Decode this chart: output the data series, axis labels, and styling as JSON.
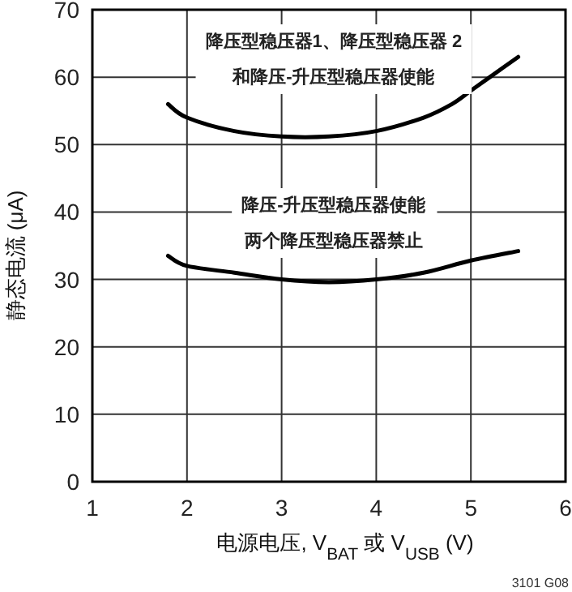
{
  "chart_data": {
    "type": "line",
    "xlabel": "电源电压, V$_{BAT}$ 或 V$_{USB}$ (V)",
    "ylabel": "静态电流 (μA)",
    "xlim": [
      1,
      6
    ],
    "ylim": [
      0,
      70
    ],
    "xticks": [
      1,
      2,
      3,
      4,
      5,
      6
    ],
    "yticks": [
      0,
      10,
      20,
      30,
      40,
      50,
      60,
      70
    ],
    "grid": true,
    "legend": false,
    "marker": "none",
    "line_style": "solid",
    "series": [
      {
        "name": "降压型稳压器1、降压型稳压器 2和降压-升压型稳压器使能",
        "color": "#000000",
        "x": [
          1.8,
          2,
          2.5,
          3,
          3.5,
          4,
          4.5,
          4.8,
          5,
          5.2,
          5.5
        ],
        "values": [
          56,
          54,
          52,
          51.2,
          51.2,
          52,
          54,
          56,
          58,
          60,
          63
        ]
      },
      {
        "name": "降压-升压型稳压器使能两个降压型稳压器禁止",
        "color": "#000000",
        "x": [
          1.8,
          2,
          2.5,
          3,
          3.5,
          4,
          4.5,
          5,
          5.5
        ],
        "values": [
          33.5,
          32,
          31,
          30,
          29.6,
          30,
          31,
          32.8,
          34.2
        ]
      }
    ],
    "annotations": [
      "3101 G08"
    ]
  }
}
